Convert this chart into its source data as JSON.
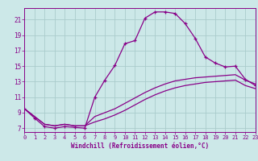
{
  "xlabel": "Windchill (Refroidissement éolien,°C)",
  "bg_color": "#cce8e8",
  "grid_color": "#aacccc",
  "line_color": "#880088",
  "x_ticks": [
    0,
    1,
    2,
    3,
    4,
    5,
    6,
    7,
    8,
    9,
    10,
    11,
    12,
    13,
    14,
    15,
    16,
    17,
    18,
    19,
    20,
    21,
    22,
    23
  ],
  "y_ticks": [
    7,
    9,
    11,
    13,
    15,
    17,
    19,
    21
  ],
  "xlim": [
    0,
    23
  ],
  "ylim": [
    6.5,
    22.5
  ],
  "line1_x": [
    0,
    1,
    2,
    3,
    4,
    5,
    6,
    7,
    8,
    9,
    10,
    11,
    12,
    13,
    14,
    15,
    16,
    17,
    18,
    19,
    20,
    21,
    22,
    23
  ],
  "line1_y": [
    9.5,
    8.3,
    7.2,
    7.0,
    7.2,
    7.1,
    7.0,
    11.0,
    13.2,
    15.1,
    17.9,
    18.3,
    21.2,
    22.0,
    22.0,
    21.8,
    20.5,
    18.6,
    16.2,
    15.4,
    14.9,
    15.0,
    13.3,
    12.5
  ],
  "line2_x": [
    0,
    2,
    3,
    4,
    5,
    6,
    7,
    8,
    9,
    10,
    11,
    12,
    13,
    14,
    15,
    16,
    17,
    18,
    19,
    20,
    21,
    22,
    23
  ],
  "line2_y": [
    9.5,
    7.5,
    7.3,
    7.5,
    7.3,
    7.3,
    7.8,
    8.2,
    8.7,
    9.3,
    10.0,
    10.7,
    11.3,
    11.8,
    12.2,
    12.5,
    12.7,
    12.9,
    13.0,
    13.1,
    13.2,
    12.5,
    12.1
  ],
  "line3_x": [
    0,
    2,
    3,
    4,
    5,
    6,
    7,
    8,
    9,
    10,
    11,
    12,
    13,
    14,
    15,
    16,
    17,
    18,
    19,
    20,
    21,
    22,
    23
  ],
  "line3_y": [
    9.5,
    7.5,
    7.3,
    7.5,
    7.3,
    7.3,
    8.5,
    9.0,
    9.5,
    10.2,
    10.9,
    11.6,
    12.2,
    12.7,
    13.1,
    13.3,
    13.5,
    13.6,
    13.7,
    13.8,
    13.9,
    13.2,
    12.7
  ]
}
